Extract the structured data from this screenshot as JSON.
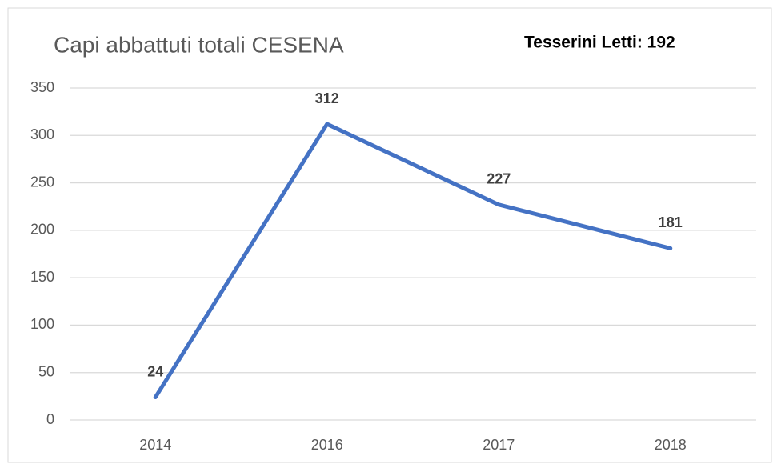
{
  "chart_data": {
    "type": "line",
    "title": "Capi abbattuti totali CESENA",
    "annotation": "Tesserini Letti: 192",
    "categories": [
      "2014",
      "2016",
      "2017",
      "2018"
    ],
    "series": [
      {
        "name": "Capi abbattuti",
        "color": "#4472c4",
        "values": [
          24,
          312,
          227,
          181
        ]
      }
    ],
    "ylim": [
      0,
      350
    ],
    "yticks": [
      0,
      50,
      100,
      150,
      200,
      250,
      300,
      350
    ],
    "grid": true,
    "legend": false
  }
}
